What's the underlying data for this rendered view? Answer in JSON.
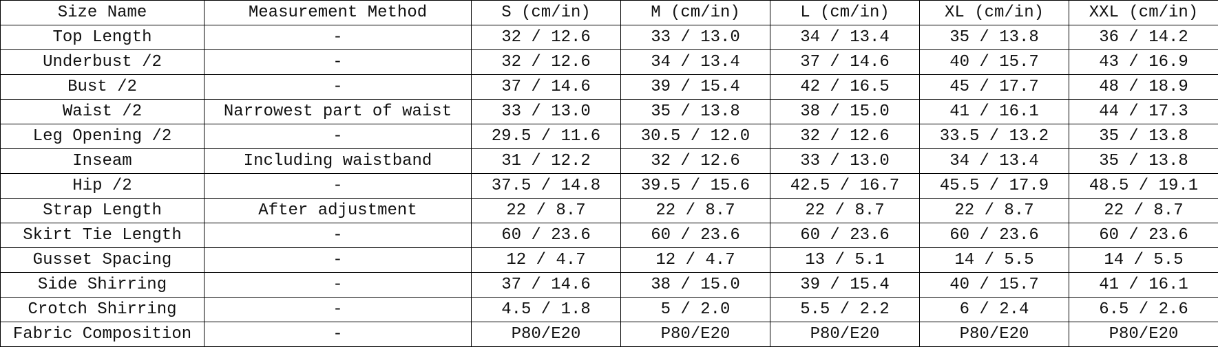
{
  "table": {
    "headers": [
      "Size Name",
      "Measurement Method",
      "S (cm/in)",
      "M (cm/in)",
      "L (cm/in)",
      "XL (cm/in)",
      "XXL (cm/in)"
    ],
    "rows": [
      [
        "Top Length",
        "-",
        "32 / 12.6",
        "33 / 13.0",
        "34 / 13.4",
        "35 / 13.8",
        "36 / 14.2"
      ],
      [
        "Underbust /2",
        "-",
        "32 / 12.6",
        "34 / 13.4",
        "37 / 14.6",
        "40 / 15.7",
        "43 / 16.9"
      ],
      [
        "Bust /2",
        "-",
        "37 / 14.6",
        "39 / 15.4",
        "42 / 16.5",
        "45 / 17.7",
        "48 / 18.9"
      ],
      [
        "Waist /2",
        "Narrowest part of waist",
        "33 / 13.0",
        "35 / 13.8",
        "38 / 15.0",
        "41 / 16.1",
        "44 / 17.3"
      ],
      [
        "Leg Opening /2",
        "-",
        "29.5 / 11.6",
        "30.5 / 12.0",
        "32 / 12.6",
        "33.5 / 13.2",
        "35 / 13.8"
      ],
      [
        "Inseam",
        "Including waistband",
        "31 / 12.2",
        "32 / 12.6",
        "33 / 13.0",
        "34 / 13.4",
        "35 / 13.8"
      ],
      [
        "Hip /2",
        "-",
        "37.5 / 14.8",
        "39.5 / 15.6",
        "42.5 / 16.7",
        "45.5 / 17.9",
        "48.5 / 19.1"
      ],
      [
        "Strap Length",
        "After adjustment",
        "22 / 8.7",
        "22 / 8.7",
        "22 / 8.7",
        "22 / 8.7",
        "22 / 8.7"
      ],
      [
        "Skirt Tie Length",
        "-",
        "60 / 23.6",
        "60 / 23.6",
        "60 / 23.6",
        "60 / 23.6",
        "60 / 23.6"
      ],
      [
        "Gusset Spacing",
        "-",
        "12 / 4.7",
        "12 / 4.7",
        "13 / 5.1",
        "14 / 5.5",
        "14 / 5.5"
      ],
      [
        "Side Shirring",
        "-",
        "37 / 14.6",
        "38 / 15.0",
        "39 / 15.4",
        "40 / 15.7",
        "41 / 16.1"
      ],
      [
        "Crotch Shirring",
        "-",
        "4.5 / 1.8",
        "5 / 2.0",
        "5.5 / 2.2",
        "6 / 2.4",
        "6.5 / 2.6"
      ],
      [
        "Fabric Composition",
        "-",
        "P80/E20",
        "P80/E20",
        "P80/E20",
        "P80/E20",
        "P80/E20"
      ]
    ]
  }
}
